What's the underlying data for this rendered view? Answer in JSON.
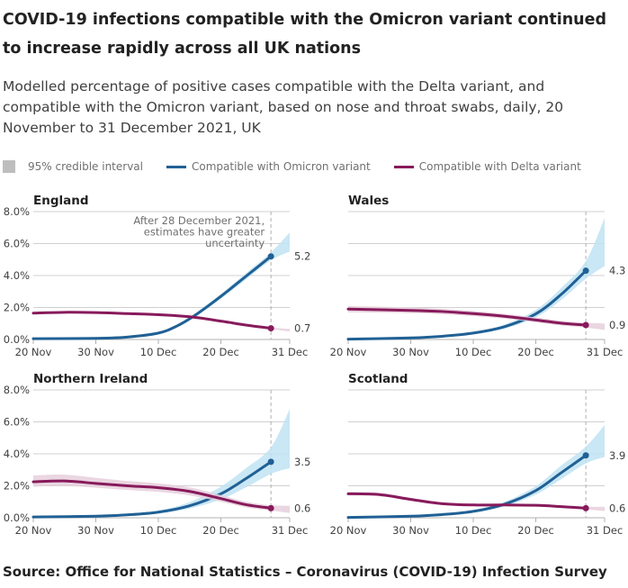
{
  "title": "COVID-19 infections compatible with the Omicron variant continued to increase rapidly across all UK nations",
  "subtitle": "Modelled percentage of positive cases compatible with the Delta variant, and compatible with the Omicron variant, based on nose and throat swabs, daily, 20 November to 31 December 2021, UK",
  "legend": {
    "ci": "95% credible interval",
    "omicron": "Compatible with Omicron variant",
    "delta": "Compatible with Delta variant"
  },
  "source": "Source: Office for National Statistics – Coronavirus (COVID-19) Infection Survey",
  "colors": {
    "omicron": "#206095",
    "omicron_ci": "#bfe3f2",
    "delta": "#871a5b",
    "delta_ci": "#e6cfdc",
    "grid": "#d0d0d0",
    "ci_legend": "#bebebe"
  },
  "chart_data": [
    {
      "type": "line",
      "title": "England",
      "ylim": [
        0,
        8
      ],
      "yticks": [
        "0.0%",
        "2.0%",
        "4.0%",
        "6.0%",
        "8.0%"
      ],
      "xticks": [
        "20 Nov",
        "30 Nov",
        "10 Dec",
        "20 Dec",
        "31 Dec"
      ],
      "annotation": "After 28 December 2021, estimates have greater uncertainty",
      "annotation_date": "2021-12-28",
      "series": [
        {
          "name": "Compatible with Omicron variant",
          "end_label": "5.2",
          "points": [
            [
              "2021-11-20",
              0.05,
              0.04,
              0.06
            ],
            [
              "2021-11-30",
              0.07,
              0.06,
              0.08
            ],
            [
              "2021-12-05",
              0.15,
              0.13,
              0.17
            ],
            [
              "2021-12-10",
              0.4,
              0.36,
              0.44
            ],
            [
              "2021-12-13",
              0.85,
              0.78,
              0.92
            ],
            [
              "2021-12-16",
              1.55,
              1.45,
              1.65
            ],
            [
              "2021-12-20",
              2.7,
              2.55,
              2.85
            ],
            [
              "2021-12-24",
              3.95,
              3.75,
              4.15
            ],
            [
              "2021-12-28",
              5.2,
              4.95,
              5.45
            ],
            [
              "2021-12-31",
              6.0,
              5.5,
              6.7
            ]
          ]
        },
        {
          "name": "Compatible with Delta variant",
          "end_label": "0.7",
          "points": [
            [
              "2021-11-20",
              1.65,
              1.6,
              1.7
            ],
            [
              "2021-11-25",
              1.7,
              1.65,
              1.75
            ],
            [
              "2021-11-30",
              1.68,
              1.63,
              1.73
            ],
            [
              "2021-12-05",
              1.62,
              1.57,
              1.67
            ],
            [
              "2021-12-10",
              1.55,
              1.5,
              1.6
            ],
            [
              "2021-12-15",
              1.42,
              1.37,
              1.47
            ],
            [
              "2021-12-20",
              1.15,
              1.1,
              1.2
            ],
            [
              "2021-12-24",
              0.9,
              0.85,
              0.95
            ],
            [
              "2021-12-28",
              0.7,
              0.65,
              0.75
            ],
            [
              "2021-12-31",
              0.58,
              0.5,
              0.66
            ]
          ]
        }
      ]
    },
    {
      "type": "line",
      "title": "Wales",
      "ylim": [
        0,
        8
      ],
      "xticks": [
        "20 Nov",
        "30 Nov",
        "10 Dec",
        "20 Dec",
        "31 Dec"
      ],
      "series": [
        {
          "name": "Compatible with Omicron variant",
          "end_label": "4.3",
          "points": [
            [
              "2021-11-20",
              0.02,
              0.01,
              0.03
            ],
            [
              "2021-11-30",
              0.1,
              0.08,
              0.12
            ],
            [
              "2021-12-05",
              0.2,
              0.17,
              0.24
            ],
            [
              "2021-12-10",
              0.4,
              0.34,
              0.47
            ],
            [
              "2021-12-15",
              0.8,
              0.68,
              0.94
            ],
            [
              "2021-12-20",
              1.6,
              1.38,
              1.85
            ],
            [
              "2021-12-24",
              2.8,
              2.45,
              3.2
            ],
            [
              "2021-12-28",
              4.3,
              3.8,
              4.9
            ],
            [
              "2021-12-31",
              5.8,
              4.6,
              7.6
            ]
          ]
        },
        {
          "name": "Compatible with Delta variant",
          "end_label": "0.9",
          "points": [
            [
              "2021-11-20",
              1.9,
              1.7,
              2.1
            ],
            [
              "2021-11-30",
              1.82,
              1.65,
              2.0
            ],
            [
              "2021-12-05",
              1.75,
              1.58,
              1.92
            ],
            [
              "2021-12-10",
              1.62,
              1.46,
              1.78
            ],
            [
              "2021-12-15",
              1.45,
              1.3,
              1.6
            ],
            [
              "2021-12-20",
              1.22,
              1.08,
              1.38
            ],
            [
              "2021-12-24",
              1.02,
              0.88,
              1.17
            ],
            [
              "2021-12-28",
              0.9,
              0.75,
              1.05
            ],
            [
              "2021-12-31",
              0.8,
              0.6,
              1.0
            ]
          ]
        }
      ]
    },
    {
      "type": "line",
      "title": "Northern Ireland",
      "ylim": [
        0,
        8
      ],
      "yticks": [
        "0.0%",
        "2.0%",
        "4.0%",
        "6.0%",
        "8.0%"
      ],
      "xticks": [
        "20 Nov",
        "30 Nov",
        "10 Dec",
        "20 Dec",
        "31 Dec"
      ],
      "series": [
        {
          "name": "Compatible with Omicron variant",
          "end_label": "3.5",
          "points": [
            [
              "2021-11-20",
              0.05,
              0.04,
              0.06
            ],
            [
              "2021-11-30",
              0.1,
              0.08,
              0.12
            ],
            [
              "2021-12-05",
              0.18,
              0.14,
              0.22
            ],
            [
              "2021-12-10",
              0.35,
              0.27,
              0.45
            ],
            [
              "2021-12-15",
              0.75,
              0.58,
              0.98
            ],
            [
              "2021-12-20",
              1.5,
              1.15,
              1.95
            ],
            [
              "2021-12-24",
              2.45,
              1.9,
              3.1
            ],
            [
              "2021-12-28",
              3.5,
              2.75,
              4.4
            ],
            [
              "2021-12-31",
              4.6,
              3.1,
              6.8
            ]
          ]
        },
        {
          "name": "Compatible with Delta variant",
          "end_label": "0.6",
          "points": [
            [
              "2021-11-20",
              2.25,
              1.95,
              2.65
            ],
            [
              "2021-11-25",
              2.3,
              2.0,
              2.7
            ],
            [
              "2021-11-30",
              2.15,
              1.88,
              2.5
            ],
            [
              "2021-12-05",
              2.0,
              1.74,
              2.3
            ],
            [
              "2021-12-10",
              1.88,
              1.62,
              2.15
            ],
            [
              "2021-12-15",
              1.65,
              1.4,
              1.9
            ],
            [
              "2021-12-20",
              1.2,
              1.0,
              1.42
            ],
            [
              "2021-12-24",
              0.82,
              0.65,
              1.0
            ],
            [
              "2021-12-28",
              0.6,
              0.45,
              0.78
            ],
            [
              "2021-12-31",
              0.5,
              0.3,
              0.75
            ]
          ]
        }
      ]
    },
    {
      "type": "line",
      "title": "Scotland",
      "ylim": [
        0,
        8
      ],
      "xticks": [
        "20 Nov",
        "30 Nov",
        "10 Dec",
        "20 Dec",
        "31 Dec"
      ],
      "series": [
        {
          "name": "Compatible with Omicron variant",
          "end_label": "3.9",
          "points": [
            [
              "2021-11-20",
              0.02,
              0.01,
              0.03
            ],
            [
              "2021-11-30",
              0.1,
              0.08,
              0.12
            ],
            [
              "2021-12-05",
              0.2,
              0.17,
              0.24
            ],
            [
              "2021-12-10",
              0.4,
              0.34,
              0.47
            ],
            [
              "2021-12-15",
              0.85,
              0.72,
              1.0
            ],
            [
              "2021-12-20",
              1.7,
              1.45,
              1.98
            ],
            [
              "2021-12-24",
              2.8,
              2.4,
              3.25
            ],
            [
              "2021-12-28",
              3.9,
              3.4,
              4.45
            ],
            [
              "2021-12-31",
              4.6,
              3.8,
              5.8
            ]
          ]
        },
        {
          "name": "Compatible with Delta variant",
          "end_label": "0.6",
          "points": [
            [
              "2021-11-20",
              1.5,
              1.4,
              1.6
            ],
            [
              "2021-11-25",
              1.45,
              1.35,
              1.55
            ],
            [
              "2021-11-30",
              1.15,
              1.07,
              1.25
            ],
            [
              "2021-12-05",
              0.88,
              0.8,
              0.96
            ],
            [
              "2021-12-10",
              0.8,
              0.73,
              0.88
            ],
            [
              "2021-12-15",
              0.8,
              0.73,
              0.88
            ],
            [
              "2021-12-20",
              0.78,
              0.7,
              0.86
            ],
            [
              "2021-12-24",
              0.7,
              0.62,
              0.78
            ],
            [
              "2021-12-28",
              0.6,
              0.52,
              0.7
            ],
            [
              "2021-12-31",
              0.55,
              0.42,
              0.68
            ]
          ]
        }
      ]
    }
  ]
}
